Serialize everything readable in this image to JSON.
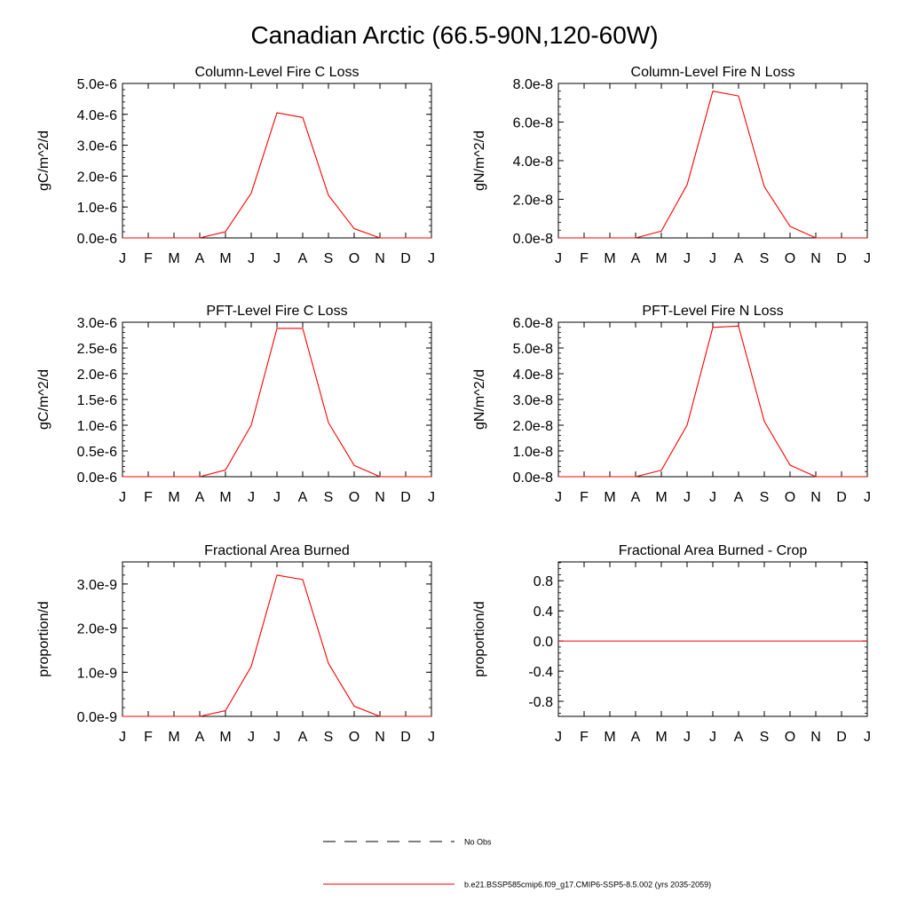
{
  "figure": {
    "title": "Canadian Arctic (66.5-90N,120-60W)",
    "legend": {
      "placement": "bottom-center",
      "entries": [
        {
          "label": "No Obs",
          "style": "dashed",
          "color": "#000000"
        },
        {
          "label": "b.e21.BSSP585cmip6.f09_g17.CMIP6-SSP5-8.5.002 (yrs 2035-2059)",
          "style": "solid",
          "color": "#ff0000"
        }
      ]
    }
  },
  "chart_data": [
    {
      "type": "line",
      "title": "Column-Level Fire C Loss",
      "ylabel": "gC/m^2/d",
      "categories": [
        "J",
        "F",
        "M",
        "A",
        "M",
        "J",
        "J",
        "A",
        "S",
        "O",
        "N",
        "D",
        "J"
      ],
      "ylim": [
        0,
        5e-06
      ],
      "yticks": [
        0,
        1e-06,
        2e-06,
        3e-06,
        4e-06,
        5e-06
      ],
      "ytick_labels": [
        "0.0e-6",
        "1.0e-6",
        "2.0e-6",
        "3.0e-6",
        "4.0e-6",
        "5.0e-6"
      ],
      "series": [
        {
          "color": "#ff0000",
          "values": [
            0,
            0,
            0,
            0,
            2e-07,
            1.45e-06,
            4.05e-06,
            3.9e-06,
            1.38e-06,
            3e-07,
            0,
            0,
            0
          ]
        }
      ]
    },
    {
      "type": "line",
      "title": "Column-Level Fire N Loss",
      "ylabel": "gN/m^2/d",
      "categories": [
        "J",
        "F",
        "M",
        "A",
        "M",
        "J",
        "J",
        "A",
        "S",
        "O",
        "N",
        "D",
        "J"
      ],
      "ylim": [
        0,
        8e-08
      ],
      "yticks": [
        0,
        2e-08,
        4e-08,
        6e-08,
        8e-08
      ],
      "ytick_labels": [
        "0.0e-8",
        "2.0e-8",
        "4.0e-8",
        "6.0e-8",
        "8.0e-8"
      ],
      "series": [
        {
          "color": "#ff0000",
          "values": [
            0,
            0,
            0,
            0,
            3.5e-09,
            2.75e-08,
            7.6e-08,
            7.35e-08,
            2.65e-08,
            6e-09,
            0,
            0,
            0
          ]
        }
      ]
    },
    {
      "type": "line",
      "title": "PFT-Level Fire C Loss",
      "ylabel": "gC/m^2/d",
      "categories": [
        "J",
        "F",
        "M",
        "A",
        "M",
        "J",
        "J",
        "A",
        "S",
        "O",
        "N",
        "D",
        "J"
      ],
      "ylim": [
        0,
        3e-06
      ],
      "yticks": [
        0,
        5e-07,
        1e-06,
        1.5e-06,
        2e-06,
        2.5e-06,
        3e-06
      ],
      "ytick_labels": [
        "0.0e-6",
        "0.5e-6",
        "1.0e-6",
        "1.5e-6",
        "2.0e-6",
        "2.5e-6",
        "3.0e-6"
      ],
      "series": [
        {
          "color": "#ff0000",
          "values": [
            0,
            0,
            0,
            0,
            1.3e-07,
            1e-06,
            2.88e-06,
            2.88e-06,
            1.05e-06,
            2.2e-07,
            0,
            0,
            0
          ]
        }
      ]
    },
    {
      "type": "line",
      "title": "PFT-Level Fire N Loss",
      "ylabel": "gN/m^2/d",
      "categories": [
        "J",
        "F",
        "M",
        "A",
        "M",
        "J",
        "J",
        "A",
        "S",
        "O",
        "N",
        "D",
        "J"
      ],
      "ylim": [
        0,
        6e-08
      ],
      "yticks": [
        0,
        1e-08,
        2e-08,
        3e-08,
        4e-08,
        5e-08,
        6e-08
      ],
      "ytick_labels": [
        "0.0e-8",
        "1.0e-8",
        "2.0e-8",
        "3.0e-8",
        "4.0e-8",
        "5.0e-8",
        "6.0e-8"
      ],
      "series": [
        {
          "color": "#ff0000",
          "values": [
            0,
            0,
            0,
            0,
            2.5e-09,
            2e-08,
            5.8e-08,
            5.85e-08,
            2.15e-08,
            4.5e-09,
            0,
            0,
            0
          ]
        }
      ]
    },
    {
      "type": "line",
      "title": "Fractional Area Burned",
      "ylabel": "proportion/d",
      "categories": [
        "J",
        "F",
        "M",
        "A",
        "M",
        "J",
        "J",
        "A",
        "S",
        "O",
        "N",
        "D",
        "J"
      ],
      "ylim": [
        0,
        3.5e-09
      ],
      "yticks": [
        0,
        1e-09,
        2e-09,
        3e-09
      ],
      "ytick_labels": [
        "0.0e-9",
        "1.0e-9",
        "2.0e-9",
        "3.0e-9"
      ],
      "series": [
        {
          "color": "#ff0000",
          "values": [
            0,
            0,
            0,
            0,
            1.3e-10,
            1.13e-09,
            3.2e-09,
            3.1e-09,
            1.2e-09,
            2.3e-10,
            0,
            0,
            0
          ]
        }
      ]
    },
    {
      "type": "line",
      "title": "Fractional Area Burned - Crop",
      "ylabel": "proportion/d",
      "categories": [
        "J",
        "F",
        "M",
        "A",
        "M",
        "J",
        "J",
        "A",
        "S",
        "O",
        "N",
        "D",
        "J"
      ],
      "ylim": [
        -1,
        1.05
      ],
      "yticks": [
        -0.8,
        -0.4,
        0,
        0.4,
        0.8
      ],
      "ytick_labels": [
        "-0.8",
        "-0.4",
        "0.0",
        "0.4",
        "0.8"
      ],
      "series": [
        {
          "color": "#ff0000",
          "values": [
            0,
            0,
            0,
            0,
            0,
            0,
            0,
            0,
            0,
            0,
            0,
            0,
            0
          ]
        }
      ]
    }
  ]
}
